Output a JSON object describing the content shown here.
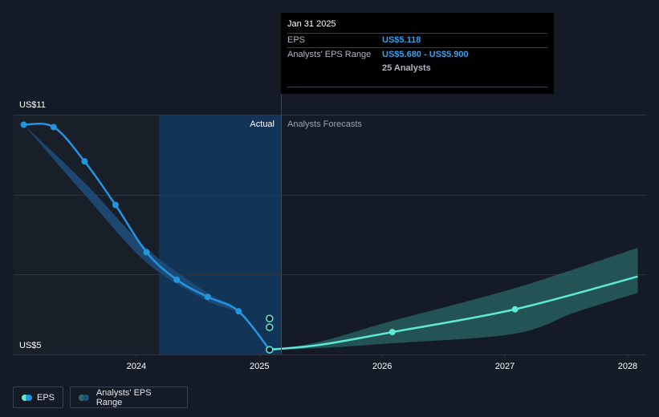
{
  "chart_data": {
    "type": "line",
    "x_ticks": [
      "2024",
      "2025",
      "2026",
      "2027",
      "2028"
    ],
    "y_ticks": [
      "US$11",
      "US$5"
    ],
    "ylim": [
      5,
      11
    ],
    "dividers": {
      "actual_label": "Actual",
      "forecast_label": "Analysts Forecasts"
    },
    "series": [
      {
        "name": "EPS",
        "points": [
          [
            "2023-01-31",
            10.75
          ],
          [
            "2023-04-30",
            10.69
          ],
          [
            "2023-07-31",
            9.83
          ],
          [
            "2023-10-31",
            8.74
          ],
          [
            "2024-01-31",
            7.56
          ],
          [
            "2024-04-30",
            6.87
          ],
          [
            "2024-07-31",
            6.44
          ],
          [
            "2024-10-31",
            6.08
          ],
          [
            "2025-01-31",
            5.118
          ]
        ]
      },
      {
        "name": "Analysts' EPS Range",
        "points": [
          [
            "2025-01-31",
            5.12
          ],
          [
            "2025-06-30",
            5.24
          ],
          [
            "2026-01-31",
            5.56
          ],
          [
            "2027-01-31",
            6.13
          ],
          [
            "2028-01-31",
            6.95
          ]
        ],
        "range_low": [
          [
            "2025-01-31",
            5.12
          ],
          [
            "2025-06-30",
            5.16
          ],
          [
            "2026-01-31",
            5.28
          ],
          [
            "2027-01-31",
            5.52
          ],
          [
            "2027-07-31",
            6.06
          ],
          [
            "2028-01-31",
            6.54
          ]
        ],
        "range_high": [
          [
            "2025-01-31",
            5.12
          ],
          [
            "2025-06-30",
            5.32
          ],
          [
            "2026-01-31",
            5.84
          ],
          [
            "2027-01-31",
            6.66
          ],
          [
            "2028-01-31",
            7.67
          ]
        ]
      }
    ],
    "past_estimate_band": {
      "high": [
        [
          "2023-01-31",
          10.75
        ],
        [
          "2023-07-31",
          9.3
        ],
        [
          "2024-01-31",
          7.66
        ],
        [
          "2024-07-31",
          6.54
        ],
        [
          "2024-10-31",
          6.12
        ],
        [
          "2025-01-31",
          5.15
        ]
      ],
      "low": [
        [
          "2023-01-31",
          10.75
        ],
        [
          "2023-07-31",
          9.0
        ],
        [
          "2024-01-31",
          7.3
        ],
        [
          "2024-07-31",
          6.34
        ],
        [
          "2024-10-31",
          6.02
        ],
        [
          "2025-01-31",
          5.13
        ]
      ]
    },
    "range_markers_at_cursor": [
      5.68,
      5.9
    ],
    "grid": true,
    "colors": {
      "eps": "#2394df",
      "forecast": "#5ee8d6",
      "forecast_band": "#2a6b6a",
      "past_band": "#1f4f7a",
      "highlight": "#123457",
      "grid": "#2e3440",
      "text": "#ffffff",
      "muted": "#9aa3ad"
    }
  },
  "tooltip": {
    "date": "Jan 31 2025",
    "rows": [
      {
        "label": "EPS",
        "value": "US$5.118"
      },
      {
        "label": "Analysts' EPS Range",
        "value": "US$5.680 - US$5.900"
      },
      {
        "label": "",
        "value": "25 Analysts"
      }
    ]
  },
  "legend": {
    "eps": "EPS",
    "range": "Analysts' EPS Range"
  }
}
